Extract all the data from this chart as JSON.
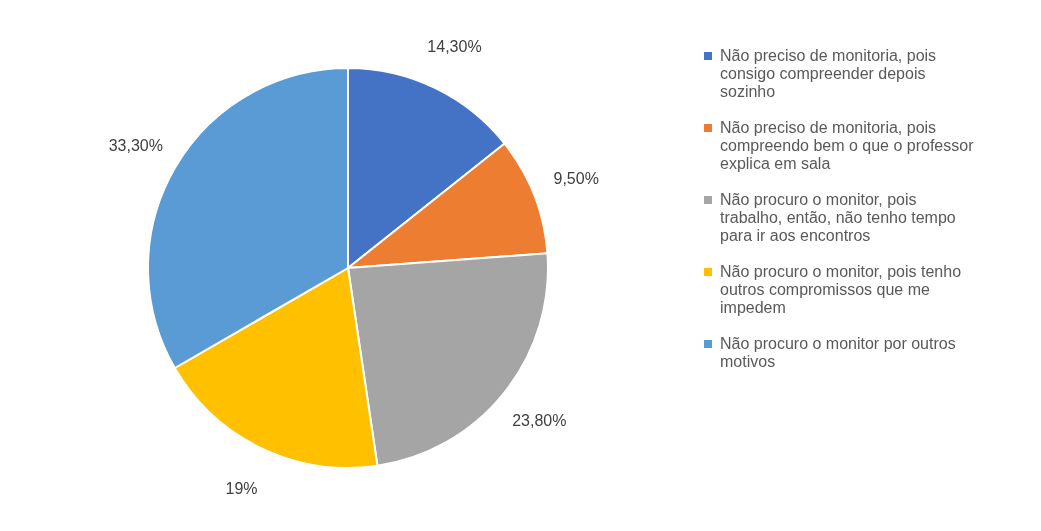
{
  "chart_data": {
    "type": "pie",
    "categories": [
      "Não preciso de monitoria, pois consigo compreender depois sozinho",
      "Não preciso de monitoria, pois compreendo bem o que o professor explica em sala",
      "Não procuro o monitor, pois trabalho, então, não tenho tempo para ir aos encontros",
      "Não procuro o monitor, pois tenho outros compromissos que me impedem",
      "Não procuro o monitor por outros motivos"
    ],
    "values": [
      14.3,
      9.5,
      23.8,
      19,
      33.3
    ],
    "value_labels": [
      "14,30%",
      "9,50%",
      "23,80%",
      "19%",
      "33,30%"
    ],
    "colors": [
      "#4472c4",
      "#ed7d31",
      "#a5a5a5",
      "#ffc000",
      "#5b9bd5"
    ],
    "legend": "right"
  }
}
